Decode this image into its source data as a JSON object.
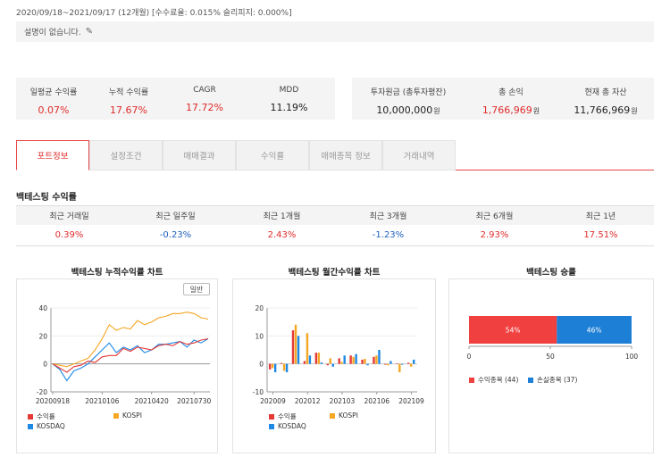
{
  "header": {
    "period": "2020/09/18~2021/09/17 (12개월) [수수료율: 0.015% 슬리피지: 0.000%]",
    "description": "설명이 없습니다.",
    "edit_icon": "pencil-icon"
  },
  "summary_left": [
    {
      "label": "일평균 수익률",
      "value": "0.07%",
      "color": "red"
    },
    {
      "label": "누적 수익률",
      "value": "17.67%",
      "color": "red"
    },
    {
      "label": "CAGR",
      "value": "17.72%",
      "color": "red"
    },
    {
      "label": "MDD",
      "value": "11.19%",
      "color": "dark"
    }
  ],
  "summary_right": [
    {
      "label": "투자원금 (총투자평잔)",
      "value": "10,000,000",
      "unit": "원",
      "color": "dark"
    },
    {
      "label": "총 손익",
      "value": "1,766,969",
      "unit": "원",
      "color": "red"
    },
    {
      "label": "현재 총 자산",
      "value": "11,766,969",
      "unit": "원",
      "color": "dark"
    }
  ],
  "tabs": [
    "포트정보",
    "설정조건",
    "매매결과",
    "수익률",
    "매매종목 정보",
    "거래내역"
  ],
  "returns": {
    "title": "백테스팅 수익률",
    "headers": [
      "최근 거래일",
      "최근 일주일",
      "최근 1개월",
      "최근 3개월",
      "최근 6개월",
      "최근 1년"
    ],
    "values": [
      {
        "v": "0.39%",
        "color": "red"
      },
      {
        "v": "-0.23%",
        "color": "blue"
      },
      {
        "v": "2.43%",
        "color": "red"
      },
      {
        "v": "-1.23%",
        "color": "blue"
      },
      {
        "v": "2.93%",
        "color": "red"
      },
      {
        "v": "17.51%",
        "color": "red"
      }
    ]
  },
  "chart_titles": {
    "cumulative": "백테스팅 누적수익률 차트",
    "monthly": "백테스팅 월간수익률 차트",
    "winrate": "백테스팅 승률"
  },
  "general_button": "일반",
  "legend": {
    "ret": "수익률",
    "kospi": "KOSPI",
    "kosdaq": "KOSDAQ",
    "win": "수익종목 (44)",
    "loss": "손실종목 (37)"
  },
  "colors": {
    "ret": "#e53935",
    "kospi": "#f5a623",
    "kosdaq": "#1e88e5",
    "win": "#f04040",
    "loss": "#1e7fd6",
    "accent": "#e64545"
  },
  "chart_data": [
    {
      "type": "line",
      "title": "백테스팅 누적수익률 차트",
      "x_ticks": [
        "20200918",
        "20210106",
        "20210420",
        "20210730"
      ],
      "y_ticks": [
        "40",
        "20",
        "0",
        "-20"
      ],
      "ylim": [
        -20,
        40
      ],
      "series": [
        {
          "name": "수익률",
          "values": [
            0,
            -3,
            -6,
            -2,
            -1,
            2,
            1,
            5,
            6,
            6,
            11,
            9,
            12,
            11,
            10,
            13,
            14,
            13,
            16,
            14,
            15,
            17,
            18
          ]
        },
        {
          "name": "KOSPI",
          "values": [
            0,
            -1,
            -2,
            0,
            2,
            4,
            10,
            18,
            28,
            24,
            26,
            25,
            31,
            28,
            30,
            33,
            34,
            36,
            36,
            37,
            36,
            33,
            32
          ]
        },
        {
          "name": "KOSDAQ",
          "values": [
            0,
            -4,
            -12,
            -5,
            -3,
            0,
            5,
            10,
            15,
            8,
            12,
            10,
            13,
            8,
            10,
            14,
            14,
            15,
            16,
            12,
            17,
            15,
            18
          ]
        }
      ]
    },
    {
      "type": "bar",
      "title": "백테스팅 월간수익률 차트",
      "categories": [
        "202009",
        "202010",
        "202011",
        "202012",
        "202101",
        "202102",
        "202103",
        "202104",
        "202105",
        "202106",
        "202107",
        "202108",
        "202109"
      ],
      "x_ticks": [
        "202009",
        "202012",
        "202103",
        "202106",
        "202109"
      ],
      "y_ticks": [
        "20",
        "10",
        "0",
        "-10"
      ],
      "ylim": [
        -10,
        20
      ],
      "series": [
        {
          "name": "수익률",
          "values": [
            -2,
            0.3,
            12,
            1,
            4,
            -0.5,
            2,
            3,
            1.5,
            2.5,
            -0.3,
            0.2,
            0.4
          ]
        },
        {
          "name": "KOSPI",
          "values": [
            -1.5,
            -2.5,
            14,
            11,
            4,
            2,
            0.7,
            2.5,
            1.8,
            3,
            -0.5,
            -3,
            -1
          ]
        },
        {
          "name": "KOSDAQ",
          "values": [
            -3,
            -3,
            10,
            3,
            0.5,
            -1,
            3,
            3.5,
            -0.5,
            5,
            1,
            -0.3,
            1.5
          ]
        }
      ]
    },
    {
      "type": "bar",
      "title": "백테스팅 승률",
      "orientation": "horizontal-stacked",
      "series": [
        {
          "name": "수익종목 (44)",
          "value": 54,
          "label": "54%"
        },
        {
          "name": "손실종목 (37)",
          "value": 46,
          "label": "46%"
        }
      ],
      "x_ticks": [
        "0",
        "50",
        "100"
      ],
      "xlim": [
        0,
        100
      ]
    }
  ]
}
